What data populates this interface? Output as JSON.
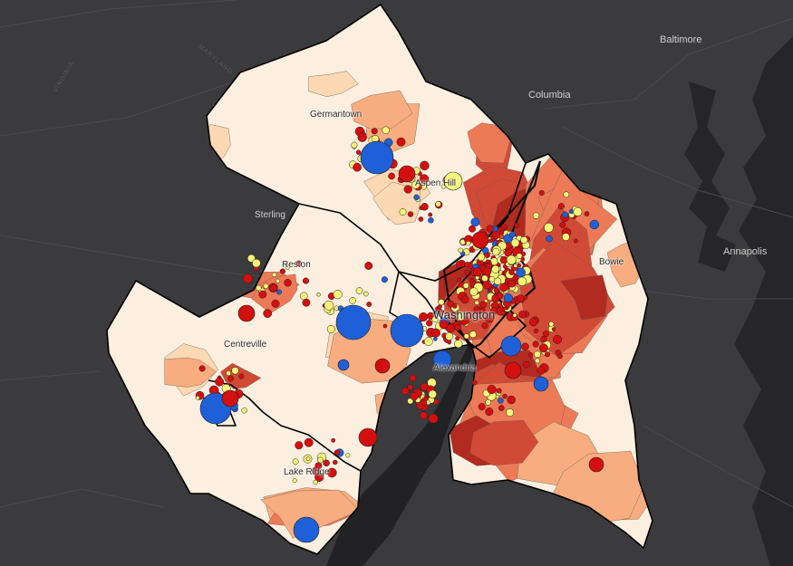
{
  "colors": {
    "basemap": "#3b3b3d",
    "water": "#262628",
    "choropleth": [
      "#fdefe0",
      "#fcd9b2",
      "#f7ad7f",
      "#ec7a57",
      "#d14a35",
      "#b22b20"
    ],
    "point_red": "#d40f0f",
    "point_yellow": "#f7f479",
    "point_blue": "#1f5fd8"
  },
  "labels": {
    "baltimore": "Baltimore",
    "columbia": "Columbia",
    "annapolis": "Annapolis",
    "sterling": "Sterling",
    "germantown": "Germantown",
    "aspen_hill": "Aspen Hill",
    "reston": "Reston",
    "centreville": "Centreville",
    "washington": "Washington",
    "alexandria": "Alexandria",
    "bowie": "Bowie",
    "lake_ridge": "Lake Ridge",
    "maryland": "MARYLAND",
    "virginia": "VIRGINIA"
  }
}
